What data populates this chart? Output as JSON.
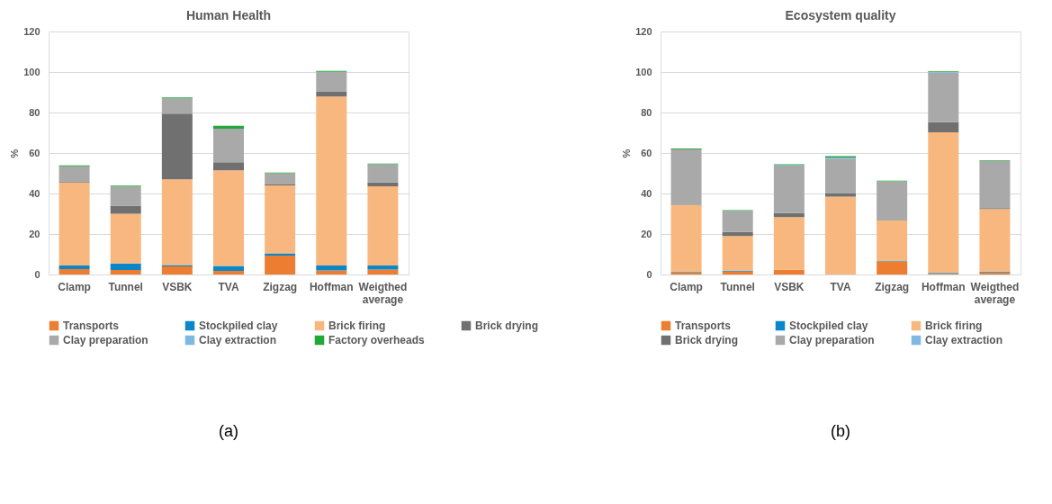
{
  "chart_data": [
    {
      "type": "bar",
      "stacked": true,
      "title": "Human Health",
      "ylabel": "%",
      "categories": [
        "Clamp",
        "Tunnel",
        "VSBK",
        "TVA",
        "Zigzag",
        "Hoffman",
        "Weigthed average"
      ],
      "ylim": [
        0,
        120
      ],
      "yticks": [
        0,
        20,
        40,
        60,
        80,
        100,
        120
      ],
      "grid": "y",
      "legend": "bottom",
      "annotations": [
        "(a)"
      ],
      "series": [
        {
          "name": "Transports",
          "color": "#ed7d31",
          "values": [
            2.7,
            2.2,
            4,
            1.8,
            9.3,
            2,
            2.5
          ]
        },
        {
          "name": "Stockpiled clay",
          "color": "#0b86c8",
          "values": [
            1.8,
            3.3,
            0.7,
            2.4,
            1.2,
            2.5,
            2
          ]
        },
        {
          "name": "Brick firing",
          "color": "#f8b77f",
          "values": [
            41,
            24.5,
            42.3,
            47.3,
            33.5,
            83.4,
            39.1
          ]
        },
        {
          "name": "Brick drying",
          "color": "#707070",
          "values": [
            0.5,
            4,
            32.5,
            4,
            0.5,
            2.5,
            1.8
          ]
        },
        {
          "name": "Clay preparation",
          "color": "#a9a9a9",
          "values": [
            7.5,
            9.5,
            7.5,
            16.5,
            5.5,
            9.7,
            9
          ]
        },
        {
          "name": "Clay extraction",
          "color": "#7fb8e0",
          "values": [
            null,
            null,
            null,
            null,
            null,
            null,
            null
          ]
        },
        {
          "name": "Factory overheads",
          "color": "#22a83a",
          "values": [
            0.4,
            0.4,
            0.4,
            1.4,
            0.3,
            0.5,
            0.4
          ]
        }
      ]
    },
    {
      "type": "bar",
      "stacked": true,
      "title": "Ecosystem quality",
      "ylabel": "%",
      "categories": [
        "Clamp",
        "Tunnel",
        "VSBK",
        "TVA",
        "Zigzag",
        "Hoffman",
        "Weigthed average"
      ],
      "ylim": [
        0,
        120
      ],
      "yticks": [
        0,
        20,
        40,
        60,
        80,
        100,
        120
      ],
      "grid": "y",
      "legend": "bottom",
      "annotations": [
        "(b)"
      ],
      "series": [
        {
          "name": "Transports",
          "color": "#ed7d31",
          "values": [
            1.1,
            1.5,
            2.3,
            null,
            6.2,
            0.3,
            1
          ]
        },
        {
          "name": "Stockpiled clay",
          "color": "#0b86c8",
          "values": [
            0.4,
            0.4,
            0,
            0,
            0.4,
            0.5,
            0.5
          ]
        },
        {
          "name": "Brick firing",
          "color": "#f8b77f",
          "values": [
            32.8,
            17.1,
            26,
            38.4,
            20.1,
            69.4,
            30.8
          ]
        },
        {
          "name": "Brick drying",
          "color": "#707070",
          "values": [
            0.3,
            2,
            2,
            1.6,
            0,
            5,
            0.5
          ]
        },
        {
          "name": "Clay preparation",
          "color": "#a9a9a9",
          "values": [
            27.2,
            10.5,
            23.5,
            17.2,
            19.3,
            24.5,
            23.2
          ]
        },
        {
          "name": "Clay extraction",
          "color": "#7fb8e0",
          "values": [
            null,
            null,
            0.3,
            0.6,
            null,
            0.3,
            null
          ]
        },
        {
          "color": "#22a83a",
          "values": [
            0.4,
            0.3,
            0.4,
            0.6,
            0.3,
            0.3,
            0.3
          ]
        }
      ]
    }
  ]
}
